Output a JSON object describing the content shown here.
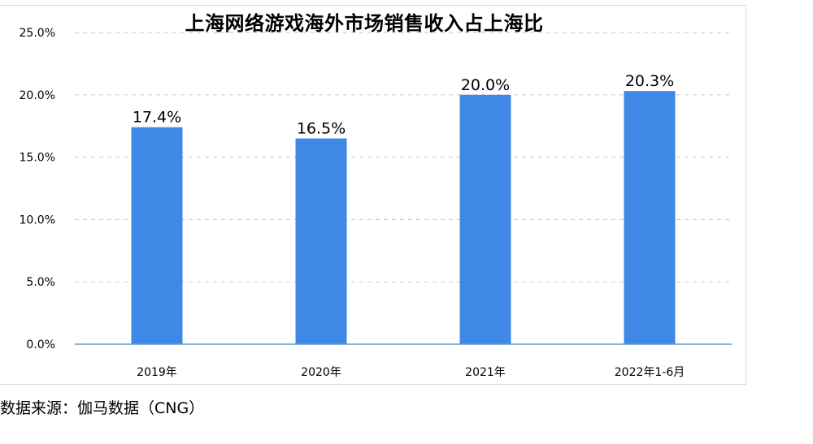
{
  "chart_data": {
    "type": "bar",
    "title": "上海网络游戏海外市场销售收入占上海比",
    "categories": [
      "2019年",
      "2020年",
      "2021年",
      "2022年1-6月"
    ],
    "values": [
      17.4,
      16.5,
      20.0,
      20.3
    ],
    "data_labels": [
      "17.4%",
      "16.5%",
      "20.0%",
      "20.3%"
    ],
    "y_ticks": [
      "0.0%",
      "5.0%",
      "10.0%",
      "15.0%",
      "20.0%",
      "25.0%"
    ],
    "ylim": [
      0,
      25
    ],
    "grid": true,
    "legend": "none",
    "bar_color": "#3f88e5",
    "axis_color": "#5b9bd5",
    "grid_color": "#d0d0d0"
  },
  "source_note": "数据来源：伽马数据（CNG）"
}
